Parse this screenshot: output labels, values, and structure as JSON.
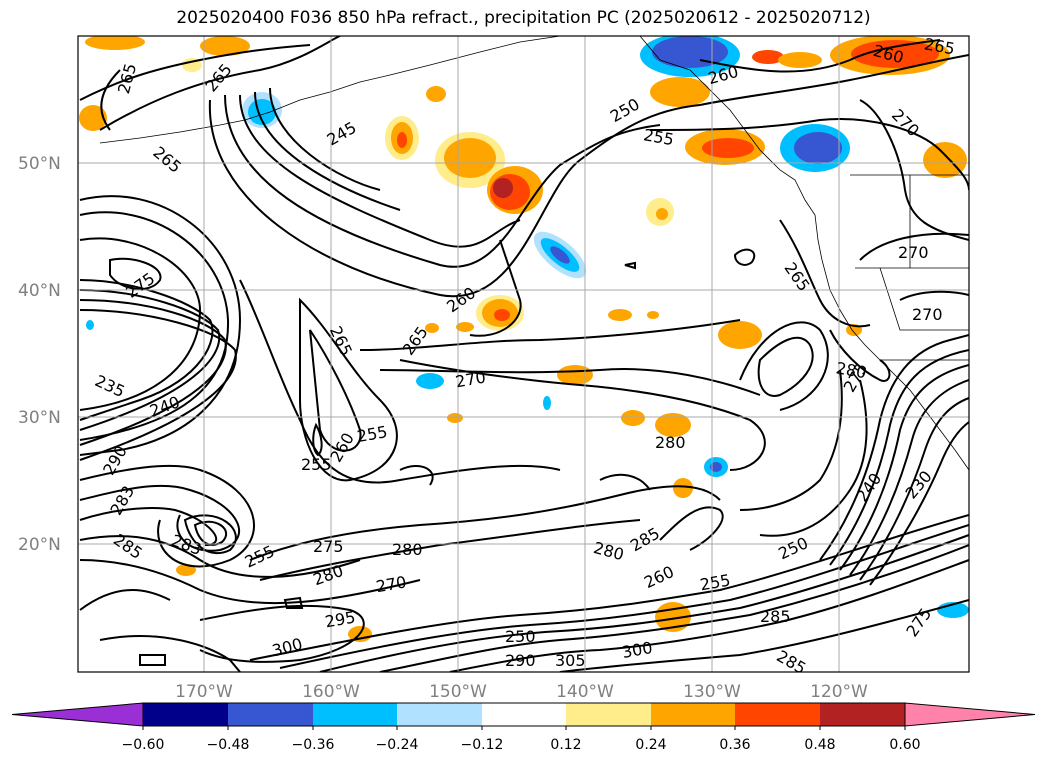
{
  "title": "2025020400 F036 850 hPa refract., precipitation PC (2025020612 - 2025020712)",
  "lat_labels": [
    "50°N",
    "40°N",
    "30°N",
    "20°N"
  ],
  "lon_labels": [
    "170°W",
    "160°W",
    "150°W",
    "140°W",
    "130°W",
    "120°W"
  ],
  "contour_labels": [
    "265",
    "265",
    "245",
    "250",
    "255",
    "260",
    "260",
    "265",
    "270",
    "265",
    "275",
    "235",
    "240",
    "265",
    "260",
    "265",
    "270",
    "255",
    "260",
    "255",
    "290",
    "283",
    "285",
    "283",
    "255",
    "275",
    "270",
    "280",
    "280",
    "280",
    "285",
    "260",
    "255",
    "250",
    "285",
    "300",
    "295",
    "300",
    "305",
    "250",
    "240",
    "230",
    "270",
    "280",
    "275",
    "290",
    "265",
    "270",
    "275",
    "280",
    "285"
  ],
  "colorbar": {
    "ticks": [
      "−0.60",
      "−0.48",
      "−0.36",
      "−0.24",
      "−0.12",
      "0.12",
      "0.24",
      "0.36",
      "0.48",
      "0.60"
    ],
    "colors": [
      "#9b2fd6",
      "#00008b",
      "#3657d1",
      "#00bfff",
      "#b0e2ff",
      "#ffffff",
      "#ffec8b",
      "#ffa500",
      "#ff4500",
      "#b22222",
      "#ff82ab"
    ]
  },
  "colors": {
    "pos1": "#ffec8b",
    "pos2": "#ffa500",
    "pos3": "#ff4500",
    "pos4": "#b22222",
    "neg1": "#b0e2ff",
    "neg2": "#00bfff",
    "neg3": "#3657d1",
    "neg4": "#00008b"
  }
}
